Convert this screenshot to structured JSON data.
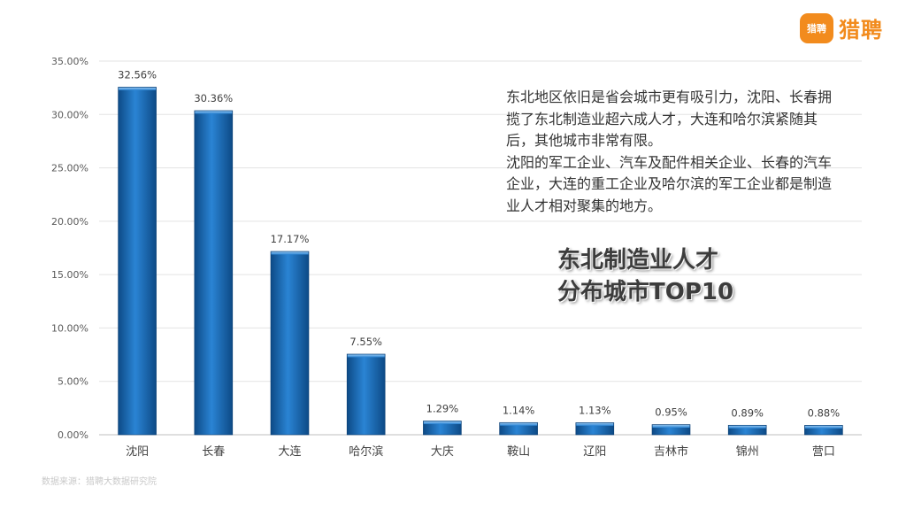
{
  "logo": {
    "mark": "猎聘",
    "text": "猎聘",
    "icon": "speech-bubble-logo-icon",
    "color": "#f28b1d"
  },
  "description": [
    "东北地区依旧是省会城市更有吸引力，沈阳、长春拥揽了东北制造业超六成人才，大连和哈尔滨紧随其后，其他城市非常有限。",
    "沈阳的军工企业、汽车及配件相关企业、长春的汽车企业，大连的重工企业及哈尔滨的军工企业都是制造业人才相对聚集的地方。"
  ],
  "title_lines": [
    "东北制造业人才",
    "分布城市TOP10"
  ],
  "source": "数据来源：猎聘大数据研究院",
  "chart_data": {
    "type": "bar",
    "title": "东北制造业人才 分布城市TOP10",
    "categories": [
      "沈阳",
      "长春",
      "大连",
      "哈尔滨",
      "大庆",
      "鞍山",
      "辽阳",
      "吉林市",
      "锦州",
      "营口"
    ],
    "values": [
      32.56,
      30.36,
      17.17,
      7.55,
      1.29,
      1.14,
      1.13,
      0.95,
      0.89,
      0.88
    ],
    "value_labels": [
      "32.56%",
      "30.36%",
      "17.17%",
      "7.55%",
      "1.29%",
      "1.14%",
      "1.13%",
      "0.95%",
      "0.89%",
      "0.88%"
    ],
    "ylim": [
      0,
      35
    ],
    "yticks": [
      "0.00%",
      "5.00%",
      "10.00%",
      "15.00%",
      "20.00%",
      "25.00%",
      "30.00%",
      "35.00%"
    ],
    "xlabel": "",
    "ylabel": "",
    "grid": true,
    "bar_color": "#1f6fb8"
  }
}
